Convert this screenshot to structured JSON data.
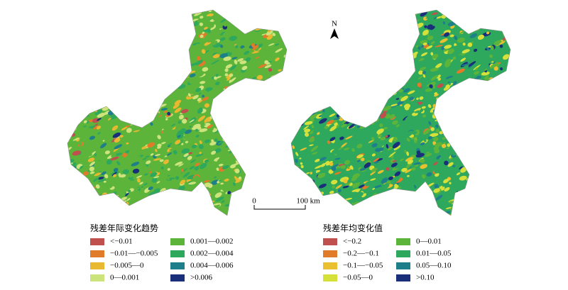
{
  "maps": [
    {
      "legend": {
        "title": "残差年际变化趋势",
        "items": [
          {
            "label": "<−0.01",
            "color": "#c0504d"
          },
          {
            "label": "−0.01—−0.005",
            "color": "#e07b2a"
          },
          {
            "label": "−0.005—0",
            "color": "#e8b830"
          },
          {
            "label": "0—0.001",
            "color": "#cde37c"
          },
          {
            "label": "0.001—0.002",
            "color": "#5cb43a"
          },
          {
            "label": "0.002—0.004",
            "color": "#2ea85c"
          },
          {
            "label": "0.004—0.006",
            "color": "#1e7f8a"
          },
          {
            "label": ">0.006",
            "color": "#1a2f7a"
          }
        ]
      }
    },
    {
      "legend": {
        "title": "残差年均变化值",
        "items": [
          {
            "label": "<−0.2",
            "color": "#c0504d"
          },
          {
            "label": "−0.2—−0.1",
            "color": "#e07b2a"
          },
          {
            "label": "−0.1—−0.05",
            "color": "#e8c030"
          },
          {
            "label": "−0.05—0",
            "color": "#d6e03a"
          },
          {
            "label": "0—0.01",
            "color": "#5cb43a"
          },
          {
            "label": "0.01—0.05",
            "color": "#2ea85c"
          },
          {
            "label": "0.05—0.10",
            "color": "#1e7f8a"
          },
          {
            "label": ">0.10",
            "color": "#1a2f7a"
          }
        ]
      }
    }
  ],
  "scale_bar": {
    "start": "0",
    "end": "100 km"
  },
  "north": "N"
}
